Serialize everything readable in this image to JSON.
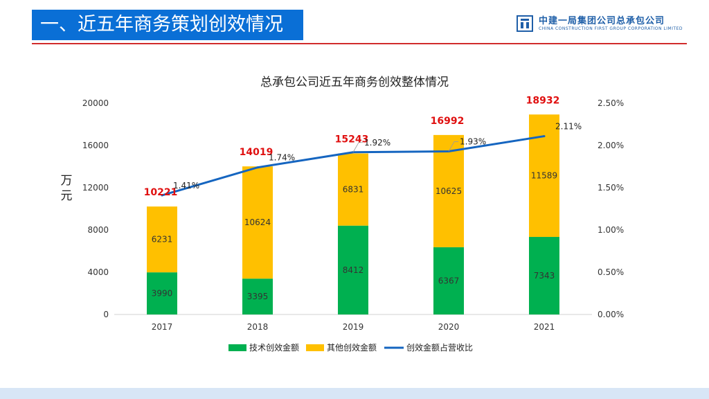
{
  "slide": {
    "heading": "一、近五年商务策划创效情况",
    "company_cn": "中建一局集团公司总承包公司",
    "company_en": "CHINA CONSTRUCTION FIRST GROUP CORPORATION LIMITED",
    "logo_icon": "building-logo-icon"
  },
  "colors": {
    "tech": "#00b050",
    "other": "#ffc000",
    "ratio": "#1565c0",
    "total": "#e01010",
    "heading_bg": "#0a6fd6",
    "rule": "#d12b2b"
  },
  "chart_data": {
    "type": "bar",
    "stacked": true,
    "title": "总承包公司近五年商务创效整体情况",
    "ylabel": "万元",
    "categories": [
      "2017",
      "2018",
      "2019",
      "2020",
      "2021"
    ],
    "series": [
      {
        "name": "技术创效金额",
        "type": "bar",
        "values": [
          3990,
          3395,
          8412,
          6367,
          7343
        ]
      },
      {
        "name": "其他创效金额",
        "type": "bar",
        "values": [
          6231,
          10624,
          6831,
          10625,
          11589
        ]
      },
      {
        "name": "创效金额占营收比",
        "type": "line",
        "axis": "right",
        "values": [
          1.41,
          1.74,
          1.92,
          1.93,
          2.11
        ],
        "labels": [
          "1.41%",
          "1.74%",
          "1.92%",
          "1.93%",
          "2.11%"
        ]
      }
    ],
    "totals": [
      10221,
      14019,
      15243,
      16992,
      18932
    ],
    "ylim": [
      0,
      20000
    ],
    "yticks": [
      "0",
      "4000",
      "8000",
      "12000",
      "16000",
      "20000"
    ],
    "y2lim": [
      0,
      2.5
    ],
    "y2ticks": [
      "0.00%",
      "0.50%",
      "1.00%",
      "1.50%",
      "2.00%",
      "2.50%"
    ],
    "legend_position": "bottom"
  }
}
